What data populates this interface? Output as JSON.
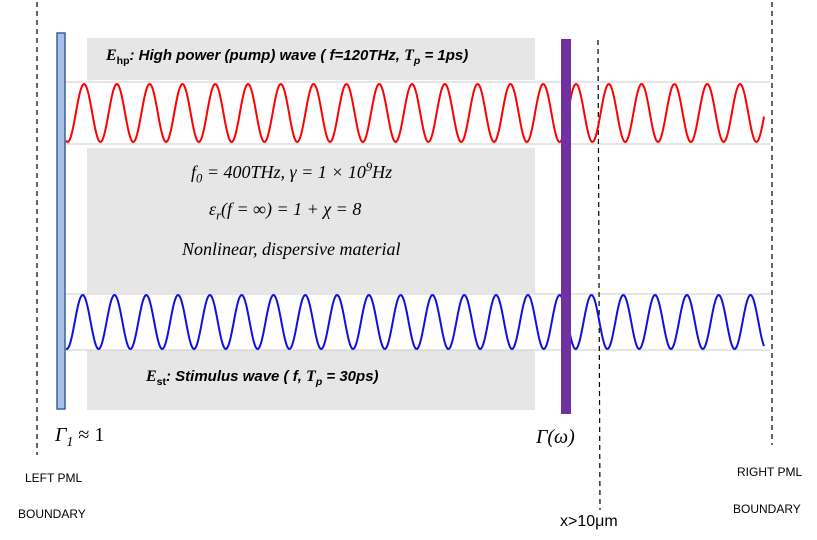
{
  "diagram": {
    "pump_label": {
      "symbol": "E",
      "sub": "hp",
      "text": ": High power (pump) wave ( f=120THz, ",
      "tp": "T",
      "tp_sub": "p",
      "tp_val": " = 1ps)"
    },
    "material": {
      "line1_a": "f",
      "line1_a_sub": "0",
      "line1_b": " = 400THz,  γ = 1 × 10",
      "line1_sup": "9",
      "line1_c": "Hz",
      "line2_a": "ε",
      "line2_a_sub": "r",
      "line2_b": "(f = ∞) = 1 + χ = 8",
      "line3": "Nonlinear, dispersive material"
    },
    "stimulus_label": {
      "symbol": "E",
      "sub": "st",
      "text": ": Stimulus wave ( f, ",
      "tp": "T",
      "tp_sub": "p",
      "tp_val": " = 30ps)"
    },
    "gamma1": {
      "sym": "Γ",
      "sub": "1",
      "rest": " ≈ 1"
    },
    "gamma_omega": "Γ(ω)",
    "left_pml_1": "LEFT PML",
    "left_pml_2": "BOUNDARY",
    "right_pml_1": "RIGHT PML",
    "right_pml_2": "BOUNDARY",
    "x_label": "x>10μm",
    "colors": {
      "pump_wave": "#ff0000",
      "stimulus_wave": "#1010e0",
      "material_bg": "#e6e6e6",
      "left_bar": "#a8c0e8",
      "right_bar": "#7030a0"
    }
  }
}
